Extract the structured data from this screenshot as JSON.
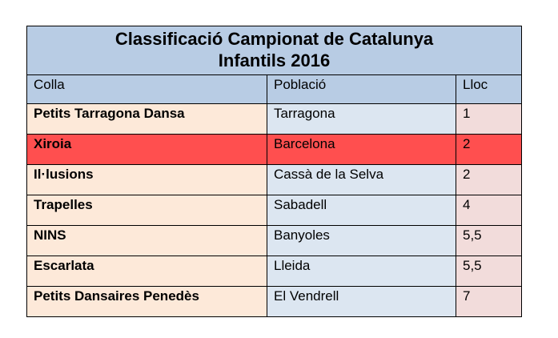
{
  "table": {
    "title_line1": "Classificació Campionat de Catalunya",
    "title_line2": "Infantils 2016",
    "headers": {
      "team": "Colla",
      "town": "Població",
      "place": "Lloc"
    },
    "rows": [
      {
        "team": "Petits Tarragona Dansa",
        "town": "Tarragona",
        "place": "1",
        "highlight": false
      },
      {
        "team": "Xiroia",
        "town": "Barcelona",
        "place": "2",
        "highlight": true
      },
      {
        "team": "Il·lusions",
        "town": "Cassà de la Selva",
        "place": "2",
        "highlight": false
      },
      {
        "team": "Trapelles",
        "town": "Sabadell",
        "place": "4",
        "highlight": false
      },
      {
        "team": "NINS",
        "town": "Banyoles",
        "place": "5,5",
        "highlight": false
      },
      {
        "team": "Escarlata",
        "town": "Lleida",
        "place": "5,5",
        "highlight": false
      },
      {
        "team": "Petits Dansaires Penedès",
        "town": "El Vendrell",
        "place": "7",
        "highlight": false
      }
    ]
  },
  "colors": {
    "header_bg": "#b8cce4",
    "team_col_bg": "#fde9d9",
    "town_col_bg": "#dce6f1",
    "place_col_bg": "#f2dcdb",
    "highlight_bg": "#ff4f4f",
    "border": "#000000"
  }
}
